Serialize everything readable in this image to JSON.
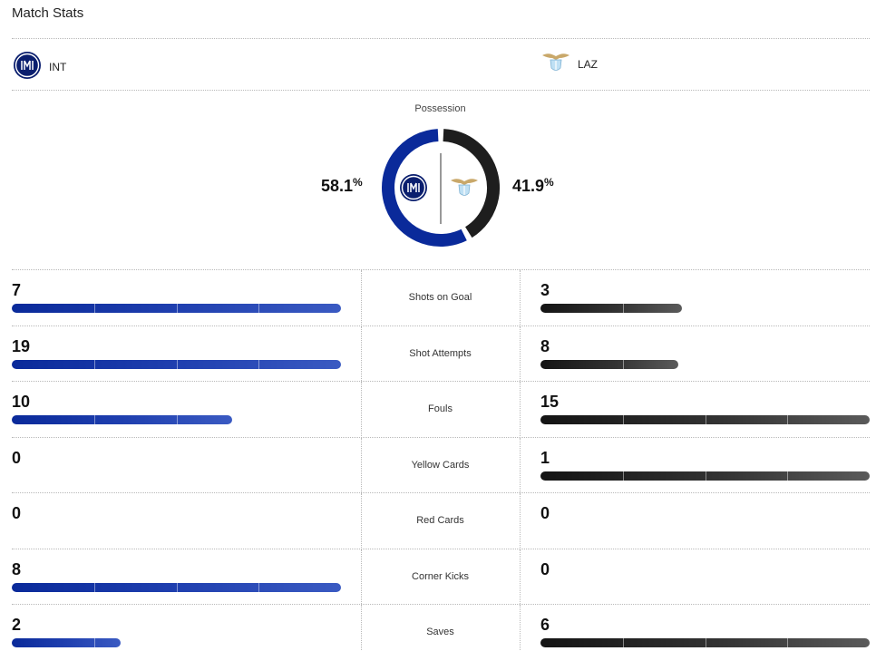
{
  "header": {
    "title": "Match Stats"
  },
  "teams": {
    "home": {
      "abbr": "INT",
      "logo_icon": "inter-crest-icon",
      "color": "#0a2a9a"
    },
    "away": {
      "abbr": "LAZ",
      "logo_icon": "lazio-eagle-icon",
      "color": "#1e1e1e"
    }
  },
  "possession": {
    "label": "Possession",
    "home_value": "58.1",
    "away_value": "41.9",
    "unit": "%",
    "home_fraction": 0.581,
    "away_fraction": 0.419
  },
  "stats": [
    {
      "label": "Shots on Goal",
      "home": "7",
      "away": "3",
      "home_bar": 1.0,
      "away_bar": 0.43
    },
    {
      "label": "Shot Attempts",
      "home": "19",
      "away": "8",
      "home_bar": 1.0,
      "away_bar": 0.42
    },
    {
      "label": "Fouls",
      "home": "10",
      "away": "15",
      "home_bar": 0.67,
      "away_bar": 1.0
    },
    {
      "label": "Yellow Cards",
      "home": "0",
      "away": "1",
      "home_bar": 0,
      "away_bar": 1.0
    },
    {
      "label": "Red Cards",
      "home": "0",
      "away": "0",
      "home_bar": 0,
      "away_bar": 0
    },
    {
      "label": "Corner Kicks",
      "home": "8",
      "away": "0",
      "home_bar": 1.0,
      "away_bar": 0
    },
    {
      "label": "Saves",
      "home": "2",
      "away": "6",
      "home_bar": 0.33,
      "away_bar": 1.0
    }
  ]
}
